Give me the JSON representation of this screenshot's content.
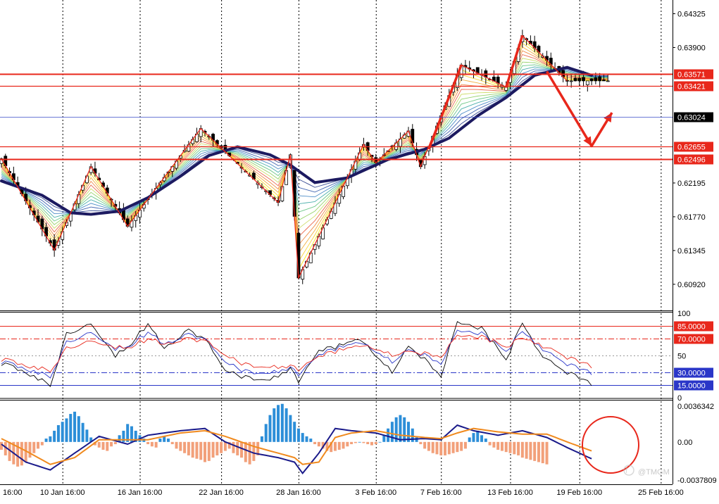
{
  "chart_data": [
    {
      "type": "candlestick",
      "panel": "price",
      "title": "",
      "y_ticks": [
        0.64325,
        0.639,
        0.63571,
        0.63421,
        0.63024,
        0.62655,
        0.62496,
        0.62195,
        0.6177,
        0.61345,
        0.6092
      ],
      "ylim": [
        0.606,
        0.6448
      ],
      "horizontal_levels": [
        {
          "value": 0.63571,
          "label": "0.63571",
          "color": "#e8271b"
        },
        {
          "value": 0.63421,
          "label": "0.63421",
          "color": "#e8271b"
        },
        {
          "value": 0.62655,
          "label": "0.62655",
          "color": "#e8271b"
        },
        {
          "value": 0.62496,
          "label": "0.62496",
          "color": "#e8271b"
        },
        {
          "value": 0.63024,
          "label": "0.63024",
          "color": "#3a4cc8",
          "current": true
        }
      ],
      "zigzag_points": [
        [
          0,
          0.625
        ],
        [
          13,
          0.6135
        ],
        [
          22,
          0.624
        ],
        [
          31,
          0.6165
        ],
        [
          49,
          0.6288
        ],
        [
          68,
          0.6195
        ],
        [
          71,
          0.6255
        ],
        [
          73,
          0.61
        ],
        [
          89,
          0.6268
        ],
        [
          92,
          0.6245
        ],
        [
          100,
          0.6285
        ],
        [
          103,
          0.624
        ],
        [
          113,
          0.6368
        ],
        [
          124,
          0.634
        ],
        [
          128,
          0.6405
        ],
        [
          139,
          0.6348
        ]
      ],
      "forecast_arrow": [
        [
          134,
          0.636
        ],
        [
          145,
          0.6266
        ],
        [
          150,
          0.6308
        ]
      ],
      "moving_average": [
        [
          0,
          0.6222
        ],
        [
          10,
          0.6204
        ],
        [
          17,
          0.6182
        ],
        [
          22,
          0.618
        ],
        [
          29,
          0.6184
        ],
        [
          36,
          0.6201
        ],
        [
          44,
          0.6228
        ],
        [
          51,
          0.6254
        ],
        [
          58,
          0.6265
        ],
        [
          66,
          0.6255
        ],
        [
          71,
          0.6242
        ],
        [
          77,
          0.622
        ],
        [
          85,
          0.6226
        ],
        [
          95,
          0.6249
        ],
        [
          104,
          0.6262
        ],
        [
          110,
          0.6276
        ],
        [
          117,
          0.6304
        ],
        [
          124,
          0.6327
        ],
        [
          131,
          0.6355
        ],
        [
          139,
          0.6365
        ],
        [
          145,
          0.6355
        ]
      ],
      "accent_color": "#e8271b",
      "ma_color": "#1c1a60"
    },
    {
      "type": "line",
      "panel": "oscillator",
      "y_ticks": [
        100,
        85.0,
        70.0,
        50,
        30.0,
        15.0,
        0
      ],
      "ylim": [
        0,
        100
      ],
      "levels": [
        {
          "value": 85,
          "label": "85.0000",
          "color": "#e8271b",
          "style": "solid"
        },
        {
          "value": 70,
          "label": "70.0000",
          "color": "#e8271b",
          "style": "dashdot"
        },
        {
          "value": 50,
          "label": "50",
          "color": "#999999",
          "style": "dotted"
        },
        {
          "value": 30,
          "label": "30.0000",
          "color": "#2a36c8",
          "style": "dashdot"
        },
        {
          "value": 15,
          "label": "15.0000",
          "color": "#2a36c8",
          "style": "solid"
        }
      ],
      "series": [
        {
          "color": "#000000",
          "values": [
            [
              0,
              40
            ],
            [
              6,
              30
            ],
            [
              12,
              15
            ],
            [
              16,
              75
            ],
            [
              22,
              90
            ],
            [
              28,
              50
            ],
            [
              32,
              65
            ],
            [
              36,
              88
            ],
            [
              40,
              60
            ],
            [
              46,
              80
            ],
            [
              50,
              70
            ],
            [
              55,
              30
            ],
            [
              60,
              25
            ],
            [
              66,
              20
            ],
            [
              71,
              35
            ],
            [
              73,
              20
            ],
            [
              78,
              55
            ],
            [
              82,
              60
            ],
            [
              88,
              70
            ],
            [
              92,
              50
            ],
            [
              96,
              30
            ],
            [
              100,
              62
            ],
            [
              104,
              45
            ],
            [
              108,
              25
            ],
            [
              112,
              88
            ],
            [
              118,
              82
            ],
            [
              124,
              45
            ],
            [
              128,
              90
            ],
            [
              132,
              55
            ],
            [
              136,
              38
            ],
            [
              140,
              28
            ],
            [
              145,
              17
            ]
          ]
        },
        {
          "color": "#2a36c8",
          "values": [
            [
              0,
              42
            ],
            [
              6,
              34
            ],
            [
              12,
              25
            ],
            [
              16,
              65
            ],
            [
              22,
              80
            ],
            [
              28,
              58
            ],
            [
              32,
              63
            ],
            [
              36,
              78
            ],
            [
              40,
              65
            ],
            [
              46,
              75
            ],
            [
              50,
              70
            ],
            [
              55,
              40
            ],
            [
              60,
              32
            ],
            [
              66,
              28
            ],
            [
              71,
              36
            ],
            [
              73,
              28
            ],
            [
              78,
              50
            ],
            [
              82,
              58
            ],
            [
              88,
              66
            ],
            [
              92,
              55
            ],
            [
              96,
              42
            ],
            [
              100,
              58
            ],
            [
              104,
              50
            ],
            [
              108,
              40
            ],
            [
              112,
              78
            ],
            [
              118,
              76
            ],
            [
              124,
              55
            ],
            [
              128,
              80
            ],
            [
              132,
              62
            ],
            [
              136,
              48
            ],
            [
              140,
              38
            ],
            [
              145,
              30
            ]
          ]
        },
        {
          "color": "#e8271b",
          "values": [
            [
              0,
              45
            ],
            [
              6,
              38
            ],
            [
              12,
              32
            ],
            [
              16,
              58
            ],
            [
              22,
              70
            ],
            [
              28,
              60
            ],
            [
              32,
              61
            ],
            [
              36,
              70
            ],
            [
              40,
              65
            ],
            [
              46,
              70
            ],
            [
              50,
              68
            ],
            [
              55,
              48
            ],
            [
              60,
              40
            ],
            [
              66,
              35
            ],
            [
              71,
              38
            ],
            [
              73,
              34
            ],
            [
              78,
              48
            ],
            [
              82,
              55
            ],
            [
              88,
              62
            ],
            [
              92,
              58
            ],
            [
              96,
              50
            ],
            [
              100,
              56
            ],
            [
              104,
              52
            ],
            [
              108,
              48
            ],
            [
              112,
              72
            ],
            [
              118,
              72
            ],
            [
              124,
              60
            ],
            [
              128,
              72
            ],
            [
              132,
              64
            ],
            [
              136,
              55
            ],
            [
              140,
              46
            ],
            [
              145,
              38
            ]
          ]
        }
      ]
    },
    {
      "type": "bar",
      "panel": "macd",
      "y_ticks": [
        0.0036342,
        0.0,
        -0.0037809
      ],
      "y_tick_labels": [
        "0.0036342",
        "0.00",
        "-0.0037809"
      ],
      "ylim": [
        -0.0037809,
        0.0036342
      ],
      "positive_color": "#2c8ed8",
      "negative_color": "#f2a07a",
      "histogram": [
        -0.0007,
        -0.0012,
        -0.0017,
        -0.002,
        -0.0022,
        -0.0021,
        -0.0018,
        -0.0014,
        -0.001,
        -0.0006,
        -0.0003,
        0.0003,
        0.0005,
        0.001,
        0.0015,
        0.0018,
        0.0021,
        0.0025,
        0.0027,
        0.0023,
        0.0017,
        0.0011,
        0.0004,
        -0.0003,
        -0.0005,
        -0.0007,
        -0.0008,
        -0.0004,
        -0.0002,
        0.0006,
        0.001,
        0.0016,
        0.0014,
        0.001,
        0.0006,
        0.0003,
        -0.0002,
        -0.0004,
        -0.0005,
        0.0003,
        0.0005,
        0.0003,
        -0.0002,
        -0.0006,
        -0.0008,
        -0.001,
        -0.0012,
        -0.0014,
        -0.0015,
        -0.0016,
        -0.0018,
        -0.0017,
        -0.0014,
        -0.0012,
        -0.001,
        -0.0008,
        -0.0006,
        -0.001,
        -0.0012,
        -0.0014,
        -0.0018,
        -0.002,
        -0.0017,
        -0.0012,
        0.0005,
        0.0016,
        0.0024,
        0.003,
        0.0033,
        0.0034,
        0.003,
        0.0024,
        0.0018,
        0.0012,
        0.0008,
        0.0005,
        0.0003,
        -0.0002,
        -0.0004,
        -0.0006,
        -0.0008,
        -0.0009,
        -0.0008,
        -0.0007,
        -0.0006,
        -0.0004,
        -0.0002,
        -0.0001,
        0.0,
        -0.0001,
        -0.0002,
        -0.0003,
        -0.0002,
        0.0,
        0.0006,
        0.0012,
        0.0018,
        0.0022,
        0.0024,
        0.0022,
        0.0018,
        0.0012,
        0.0004,
        -0.0002,
        -0.0006,
        -0.0008,
        -0.001,
        -0.0011,
        -0.0012,
        -0.0012,
        -0.0011,
        -0.001,
        -0.0009,
        -0.0008,
        -0.0006,
        0.0004,
        0.0008,
        0.001,
        0.0006,
        0.0003,
        -0.0003,
        -0.0005,
        -0.0007,
        -0.0008,
        -0.0009,
        -0.001,
        -0.0011,
        -0.0012,
        -0.0014,
        -0.0015,
        -0.0016,
        -0.0017,
        -0.0018,
        -0.0019,
        -0.002
      ],
      "series": [
        {
          "color": "#1a1a8a",
          "values": [
            [
              0,
              -0.0002
            ],
            [
              6,
              -0.0018
            ],
            [
              12,
              -0.0025
            ],
            [
              18,
              -0.001
            ],
            [
              24,
              0.0005
            ],
            [
              31,
              -0.0002
            ],
            [
              36,
              0.0006
            ],
            [
              44,
              0.001
            ],
            [
              50,
              0.0012
            ],
            [
              55,
              0.0
            ],
            [
              62,
              -0.001
            ],
            [
              68,
              -0.0014
            ],
            [
              72,
              -0.0018
            ],
            [
              74,
              -0.0028
            ],
            [
              78,
              -0.001
            ],
            [
              82,
              0.0012
            ],
            [
              86,
              0.001
            ],
            [
              92,
              0.0008
            ],
            [
              98,
              0.0002
            ],
            [
              104,
              0.0003
            ],
            [
              108,
              0.0002
            ],
            [
              112,
              0.0015
            ],
            [
              116,
              0.001
            ],
            [
              122,
              0.0006
            ],
            [
              128,
              0.001
            ],
            [
              134,
              0.0004
            ],
            [
              139,
              -0.0005
            ],
            [
              145,
              -0.0015
            ]
          ]
        },
        {
          "color": "#f08a1e",
          "values": [
            [
              0,
              0.0003
            ],
            [
              6,
              -0.0008
            ],
            [
              12,
              -0.002
            ],
            [
              18,
              -0.0014
            ],
            [
              24,
              0.0002
            ],
            [
              31,
              0.0002
            ],
            [
              36,
              0.0002
            ],
            [
              44,
              0.0008
            ],
            [
              50,
              0.001
            ],
            [
              55,
              0.0005
            ],
            [
              62,
              -0.0004
            ],
            [
              68,
              -0.001
            ],
            [
              72,
              -0.0014
            ],
            [
              74,
              -0.002
            ],
            [
              78,
              -0.0018
            ],
            [
              82,
              0.0004
            ],
            [
              86,
              0.0008
            ],
            [
              92,
              0.001
            ],
            [
              98,
              0.0006
            ],
            [
              104,
              0.0004
            ],
            [
              108,
              0.0003
            ],
            [
              112,
              0.0008
            ],
            [
              116,
              0.0012
            ],
            [
              122,
              0.0009
            ],
            [
              128,
              0.0007
            ],
            [
              134,
              0.0007
            ],
            [
              139,
              0.0
            ],
            [
              145,
              -0.0008
            ]
          ]
        }
      ]
    }
  ],
  "x_axis": {
    "labels": [
      "16:00",
      "10 Jan 16:00",
      "16 Jan 16:00",
      "22 Jan 16:00",
      "28 Jan 16:00",
      "3 Feb 16:00",
      "7 Feb 16:00",
      "13 Feb 16:00",
      "19 Feb 16:00",
      "25 Feb 16:00"
    ],
    "label_bars": [
      2,
      15,
      34,
      54,
      73,
      92,
      108,
      125,
      142,
      162
    ]
  },
  "watermark": "@TMGM"
}
